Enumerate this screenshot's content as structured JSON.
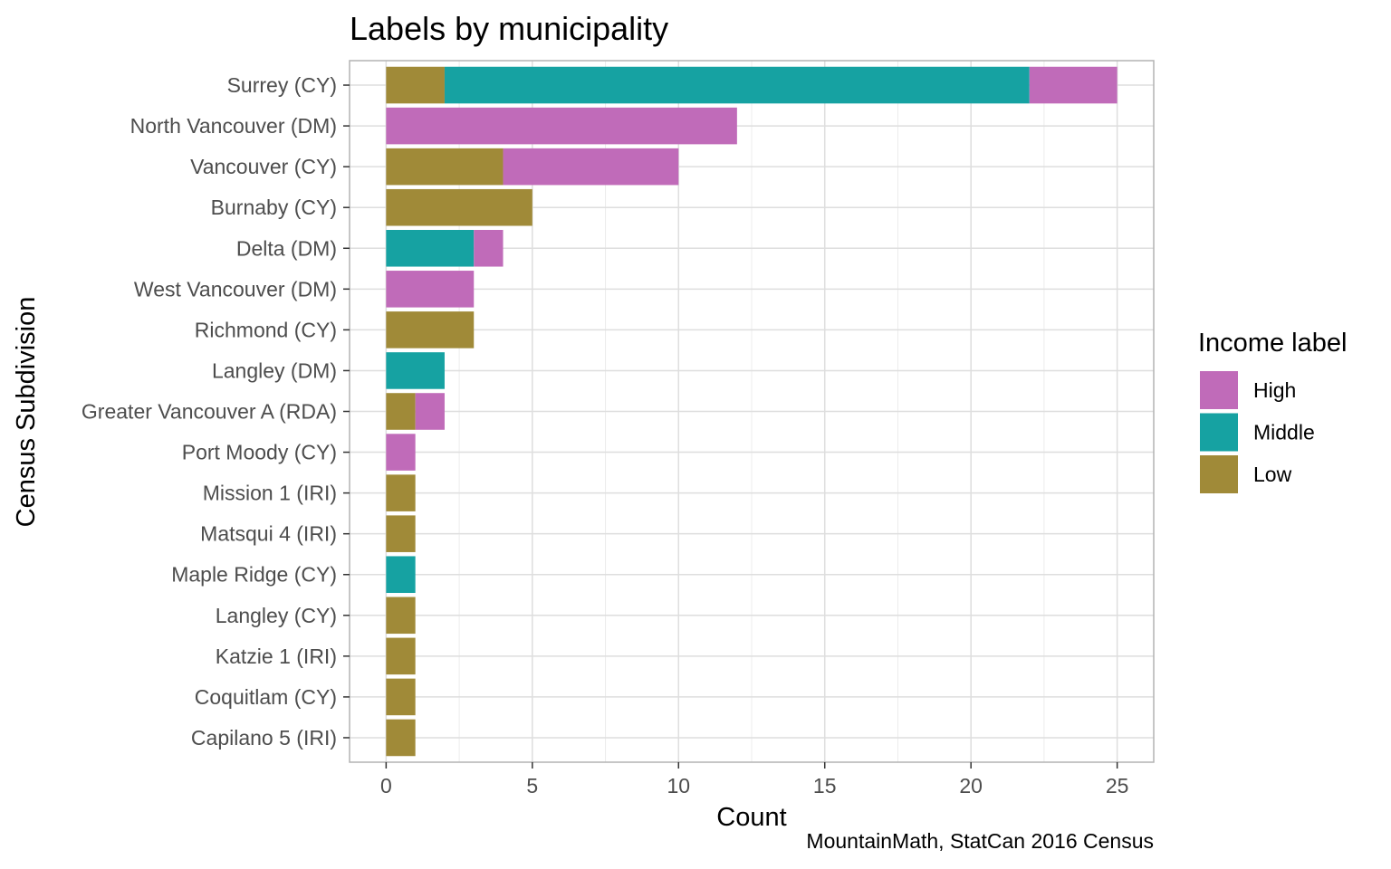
{
  "chart_data": {
    "type": "bar",
    "orientation": "horizontal",
    "stacked": true,
    "title": "Labels by municipality",
    "xlabel": "Count",
    "ylabel": "Census Subdivision",
    "caption": "MountainMath, StatCan 2016 Census",
    "xlim": [
      0,
      25
    ],
    "xticks": [
      0,
      5,
      10,
      15,
      20,
      25
    ],
    "grid": true,
    "legend_position": "right",
    "legend_title": "Income label",
    "categories": [
      "Surrey (CY)",
      "North Vancouver (DM)",
      "Vancouver (CY)",
      "Burnaby (CY)",
      "Delta (DM)",
      "West Vancouver (DM)",
      "Richmond (CY)",
      "Langley (DM)",
      "Greater Vancouver A (RDA)",
      "Port Moody (CY)",
      "Mission 1 (IRI)",
      "Matsqui 4 (IRI)",
      "Maple Ridge (CY)",
      "Langley (CY)",
      "Katzie 1 (IRI)",
      "Coquitlam (CY)",
      "Capilano 5 (IRI)"
    ],
    "stack_order": [
      "Low",
      "Middle",
      "High"
    ],
    "series": [
      {
        "name": "High",
        "color": "#C06BB9",
        "values": [
          3,
          12,
          6,
          0,
          1,
          3,
          0,
          0,
          1,
          1,
          0,
          0,
          0,
          0,
          0,
          0,
          0
        ]
      },
      {
        "name": "Middle",
        "color": "#16A2A2",
        "values": [
          20,
          0,
          0,
          0,
          3,
          0,
          0,
          2,
          0,
          0,
          0,
          0,
          1,
          0,
          0,
          0,
          0
        ]
      },
      {
        "name": "Low",
        "color": "#A08A38",
        "values": [
          2,
          0,
          4,
          5,
          0,
          0,
          3,
          0,
          1,
          0,
          1,
          1,
          0,
          1,
          1,
          1,
          1
        ]
      }
    ]
  }
}
